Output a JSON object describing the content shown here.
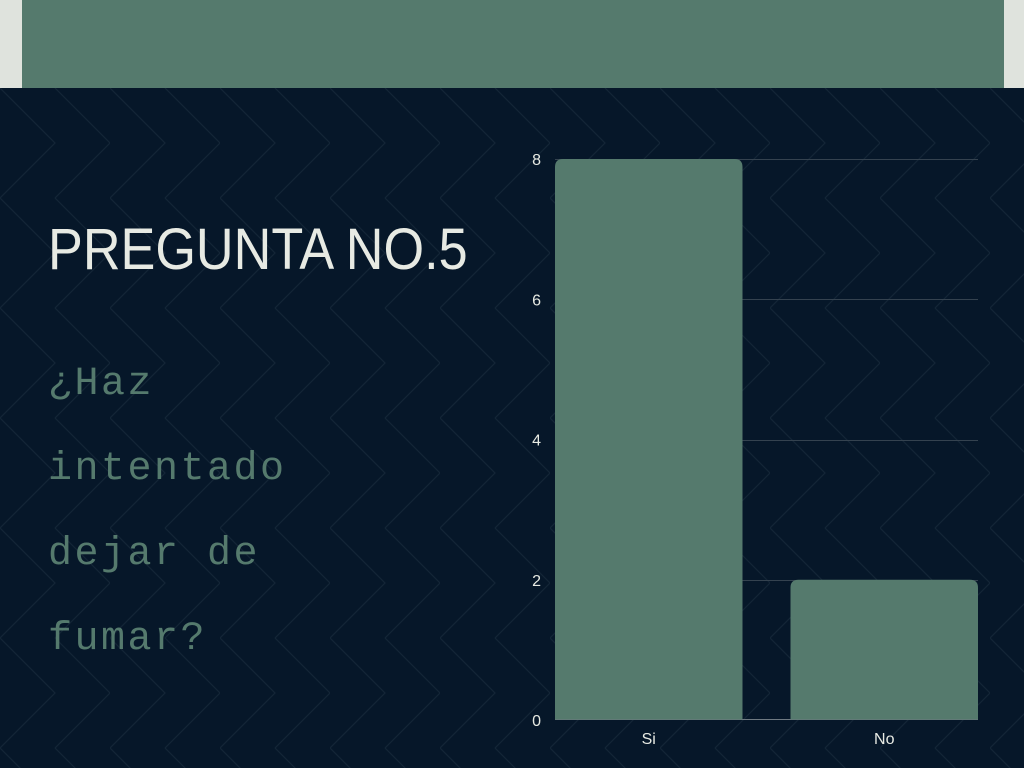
{
  "colors": {
    "accent": "#557a6d",
    "background": "#061729",
    "frame": "#dfe3dd",
    "text": "#e7eae3",
    "grid": "#34424f",
    "axis": "#6f7a82"
  },
  "slide": {
    "title": "PREGUNTA NO.5",
    "question": "¿Haz intentado dejar de fumar?"
  },
  "chart_data": {
    "type": "bar",
    "categories": [
      "Si",
      "No"
    ],
    "values": [
      8,
      2
    ],
    "ylim": [
      0,
      8
    ],
    "yticks": [
      0,
      2,
      4,
      6,
      8
    ],
    "grid": true
  }
}
